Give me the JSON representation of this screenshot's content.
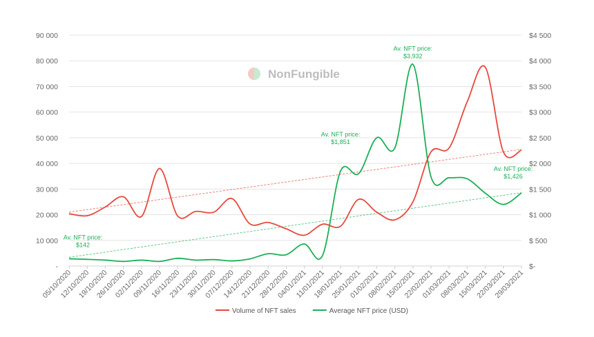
{
  "chart_data": {
    "type": "line",
    "title": "",
    "watermark": "NonFungible",
    "categories": [
      "05/10/2020",
      "12/10/2020",
      "19/10/2020",
      "26/10/2020",
      "02/11/2020",
      "09/11/2020",
      "16/11/2020",
      "23/11/2020",
      "30/11/2020",
      "07/12/2020",
      "14/12/2020",
      "21/12/2020",
      "28/12/2020",
      "04/01/2021",
      "11/01/2021",
      "18/01/2021",
      "25/01/2021",
      "01/02/2021",
      "08/02/2021",
      "15/02/2021",
      "22/02/2021",
      "01/03/2021",
      "08/03/2021",
      "15/03/2021",
      "22/03/2021",
      "29/03/2021"
    ],
    "left_axis": {
      "ylim": [
        0,
        90000
      ],
      "ticks": [
        "-",
        "10 000",
        "20 000",
        "30 000",
        "40 000",
        "50 000",
        "60 000",
        "70 000",
        "80 000",
        "90 000"
      ]
    },
    "right_axis": {
      "ylim": [
        0,
        4500
      ],
      "ticks": [
        "$-",
        "$ 500",
        "$1 000",
        "$1 500",
        "$2 000",
        "$2 500",
        "$3 000",
        "$3 500",
        "$4 000",
        "$4 500"
      ]
    },
    "grid": true,
    "legend_position": "bottom",
    "series": [
      {
        "name": "Volume of NFT sales",
        "axis": "left",
        "color": "#e8473b",
        "values": [
          20400,
          19600,
          23000,
          27000,
          19300,
          38000,
          19500,
          21300,
          21000,
          26300,
          16400,
          17000,
          14500,
          12000,
          16300,
          15500,
          26000,
          21000,
          18000,
          25000,
          44500,
          46000,
          64000,
          77500,
          44500,
          45200
        ],
        "trend": [
          21000,
          45500
        ]
      },
      {
        "name": "Average NFT price (USD)",
        "axis": "right",
        "color": "#1aaf54",
        "values": [
          142,
          130,
          115,
          90,
          115,
          90,
          150,
          115,
          125,
          100,
          140,
          240,
          220,
          430,
          200,
          1851,
          1800,
          2500,
          2300,
          3932,
          1740,
          1720,
          1700,
          1420,
          1200,
          1426
        ],
        "trend": [
          170,
          1430
        ]
      }
    ],
    "annotations": [
      {
        "index": 0,
        "line1": "Av. NFT price:",
        "line2": "$142"
      },
      {
        "index": 15,
        "line1": "Av. NFT price:",
        "line2": "$1,851"
      },
      {
        "index": 19,
        "line1": "Av. NFT price:",
        "line2": "$3,932"
      },
      {
        "index": 25,
        "line1": "Av. NFT price:",
        "line2": "$1,426"
      }
    ]
  }
}
